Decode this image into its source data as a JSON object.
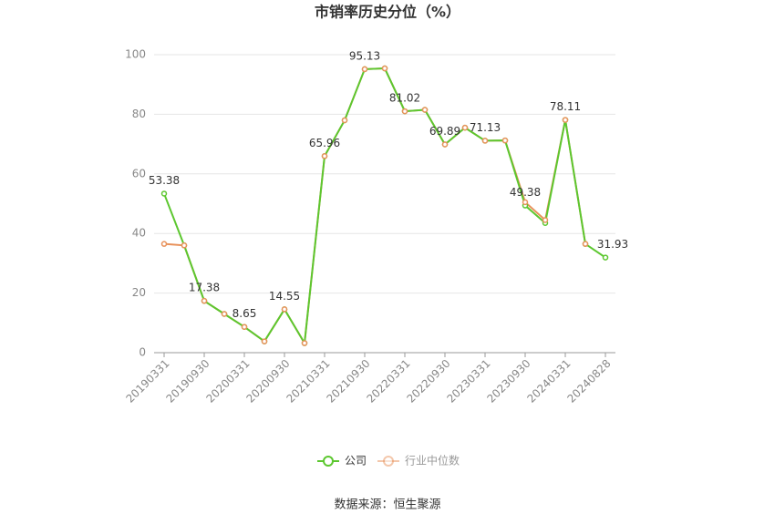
{
  "chart_data": {
    "type": "line",
    "title": "市销率历史分位（%）",
    "source": "数据来源：恒生聚源",
    "categories": [
      "20190331",
      null,
      "20190930",
      null,
      "20200331",
      null,
      "20200930",
      null,
      "20210331",
      null,
      "20210930",
      null,
      "20220331",
      null,
      "20220930",
      null,
      "20230331",
      null,
      "20230930",
      null,
      "20240331",
      null,
      "20240828"
    ],
    "series": [
      {
        "name": "公司",
        "color": "#5cc72f",
        "values": [
          53.38,
          36,
          17.38,
          13,
          8.65,
          3.8,
          14.55,
          3.2,
          65.96,
          78,
          95.13,
          95.4,
          81.02,
          81.5,
          69.89,
          75.5,
          71.13,
          71.2,
          49.38,
          43.5,
          78.11,
          36.5,
          31.93
        ],
        "value_labels": [
          "53.38",
          null,
          "17.38",
          null,
          "8.65",
          null,
          "14.55",
          null,
          "65.96",
          null,
          "95.13",
          null,
          "81.02",
          null,
          "69.89",
          null,
          "71.13",
          null,
          "49.38",
          null,
          "78.11",
          null,
          "31.93"
        ]
      },
      {
        "name": "行业中位数",
        "color": "#e8915a",
        "values": [
          36.5,
          36,
          17.38,
          13,
          8.65,
          3.8,
          14.55,
          3.2,
          65.96,
          78,
          95.13,
          95.4,
          81.02,
          81.5,
          69.89,
          75.5,
          71.13,
          71.2,
          50.5,
          44.5,
          78.11,
          36.5,
          null
        ]
      }
    ],
    "ylim": [
      0,
      100
    ],
    "yticks": [
      0,
      20,
      40,
      60,
      80,
      100
    ],
    "grid": true
  }
}
